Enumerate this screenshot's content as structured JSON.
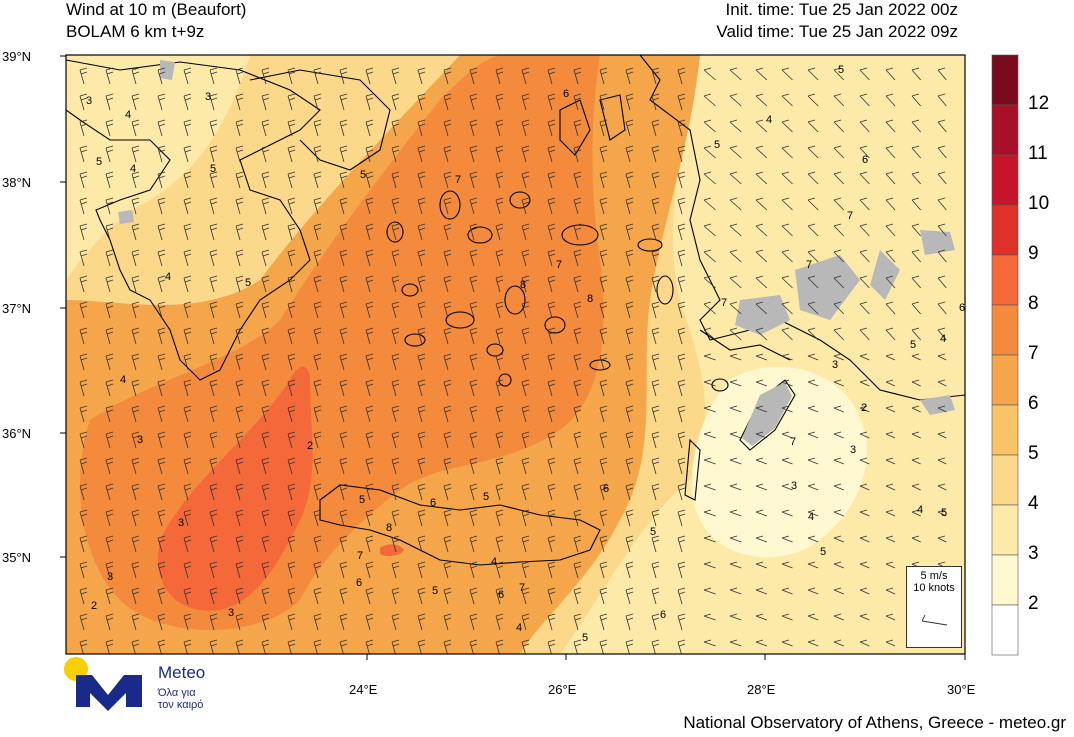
{
  "header": {
    "title": "Wind at 10 m (Beaufort)",
    "model": "BOLAM 6 km t+9z",
    "init_time": "Init. time: Tue 25 Jan 2022 00z",
    "valid_time": "Valid time: Tue 25 Jan 2022 09z"
  },
  "axes": {
    "lat_labels": [
      "39°N",
      "38°N",
      "37°N",
      "36°N",
      "35°N"
    ],
    "lon_labels": [
      "24°E",
      "26°E",
      "28°E",
      "30°E"
    ]
  },
  "legend": {
    "levels": [
      "12",
      "11",
      "10",
      "9",
      "8",
      "7",
      "6",
      "5",
      "4",
      "3",
      "2"
    ],
    "colors": [
      "#7a0a1e",
      "#a8102a",
      "#c8142a",
      "#e0302a",
      "#f4683a",
      "#f48a3c",
      "#f5a54a",
      "#f8c466",
      "#fbd88a",
      "#fdeaa8",
      "#fff8d0",
      "#ffffff"
    ]
  },
  "reference_vector": {
    "speed": "5 m/s",
    "knots": "10 knots"
  },
  "contour_labels": [
    "3",
    "4",
    "3",
    "5",
    "4",
    "5",
    "5",
    "4",
    "5",
    "4",
    "7",
    "6",
    "5",
    "4",
    "5",
    "6",
    "7",
    "7",
    "7",
    "7",
    "6",
    "5",
    "4",
    "3",
    "2",
    "2",
    "3",
    "3",
    "3",
    "3",
    "2",
    "5",
    "8",
    "8",
    "8",
    "7",
    "6",
    "5",
    "5",
    "6",
    "7",
    "4",
    "6",
    "5",
    "4",
    "5",
    "6",
    "5",
    "4",
    "3",
    "3",
    "4",
    "5",
    "6",
    "7"
  ],
  "branding": {
    "logo_name": "Meteo",
    "logo_sub1": "Όλα για",
    "logo_sub2": "τον καιρό",
    "logo_colors": {
      "sun": "#f7d000",
      "mark": "#1a2a8a"
    }
  },
  "footer": "National Observatory of Athens, Greece - meteo.gr"
}
